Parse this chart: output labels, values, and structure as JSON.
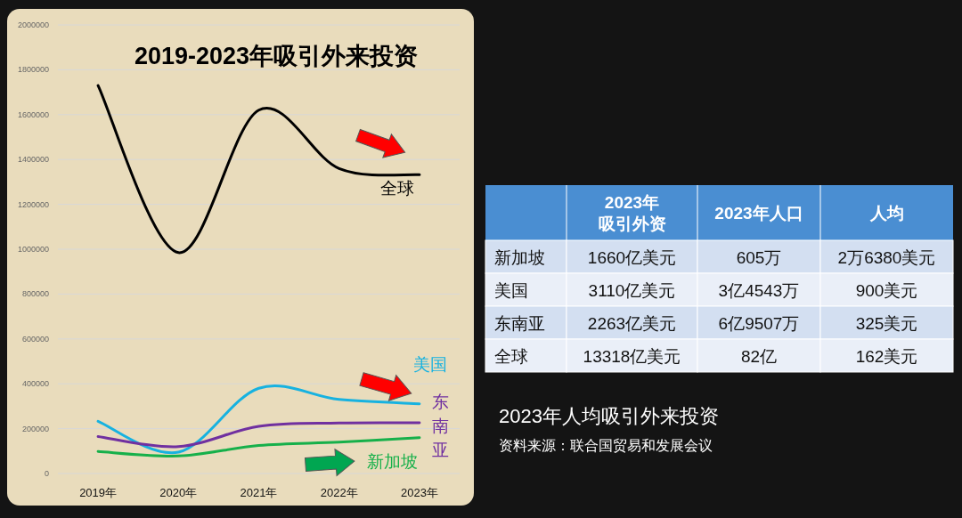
{
  "chart_data": [
    {
      "type": "line",
      "title": "2019-2023年吸引外来投资",
      "categories": [
        "2019年",
        "2020年",
        "2021年",
        "2022年",
        "2023年"
      ],
      "series": [
        {
          "name": "全球",
          "color": "#000000",
          "values": [
            1730000,
            985000,
            1620000,
            1360000,
            1332000
          ]
        },
        {
          "name": "美国",
          "color": "#17b2e0",
          "values": [
            233000,
            95000,
            380000,
            330000,
            311000
          ]
        },
        {
          "name": "东南亚",
          "color": "#7030a0",
          "values": [
            165000,
            120000,
            210000,
            225000,
            226000
          ]
        },
        {
          "name": "新加坡",
          "color": "#16b04a",
          "values": [
            98000,
            78000,
            125000,
            140000,
            160000
          ]
        }
      ],
      "ylim": [
        0,
        2000000
      ],
      "yticks": [
        0,
        200000,
        400000,
        600000,
        800000,
        1000000,
        1200000,
        1400000,
        1600000,
        1800000,
        2000000
      ],
      "grid": "y",
      "legend": false,
      "marker": "none",
      "line_style": "solid"
    },
    {
      "type": "other",
      "title": "2023年人均吸引外来投资",
      "annotations": [
        "资料来源：联合国贸易和发展会议"
      ],
      "categories": [
        null,
        "2023年吸引外资",
        "2023年人口",
        "人均"
      ],
      "y_categories": [
        "新加坡",
        "美国",
        "东南亚",
        "全球"
      ],
      "cell_labels": [
        [
          "1660亿美元",
          "605万",
          "2万6380美元"
        ],
        [
          "3110亿美元",
          "3亿4543万",
          "900美元"
        ],
        [
          "2263亿美元",
          "6亿9507万",
          "325美元"
        ],
        [
          "13318亿美元",
          "82亿",
          "162美元"
        ]
      ]
    }
  ]
}
